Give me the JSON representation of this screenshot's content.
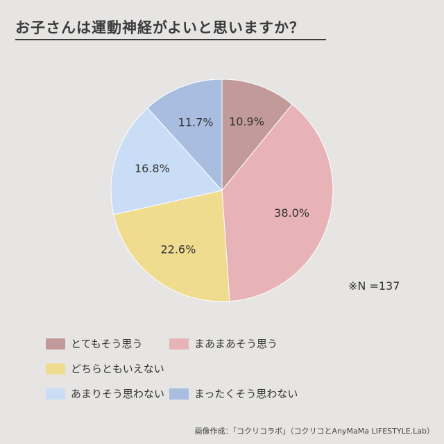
{
  "title": "お子さんは運動神経がよいと思いますか？",
  "note": "※N =137",
  "credit": "画像作成：「コクリコラボ」（コクリコとAnyMaMa LIFESTYLE.Lab）",
  "chart_data": {
    "type": "pie",
    "categories": [
      "とてもそう思う",
      "まあまあそう思う",
      "どちらともいえない",
      "あまりそう思わない",
      "まったくそう思わない"
    ],
    "values": [
      10.9,
      38.0,
      22.6,
      16.8,
      11.7
    ],
    "value_labels": [
      "10.9%",
      "38.0%",
      "22.6%",
      "16.8%",
      "11.7%"
    ],
    "colors": [
      "#c29a9a",
      "#e8b3b7",
      "#efdc8f",
      "#c9ddf7",
      "#a9bde0"
    ],
    "start": "12 o'clock",
    "direction": "clockwise",
    "legend_position": "bottom"
  }
}
